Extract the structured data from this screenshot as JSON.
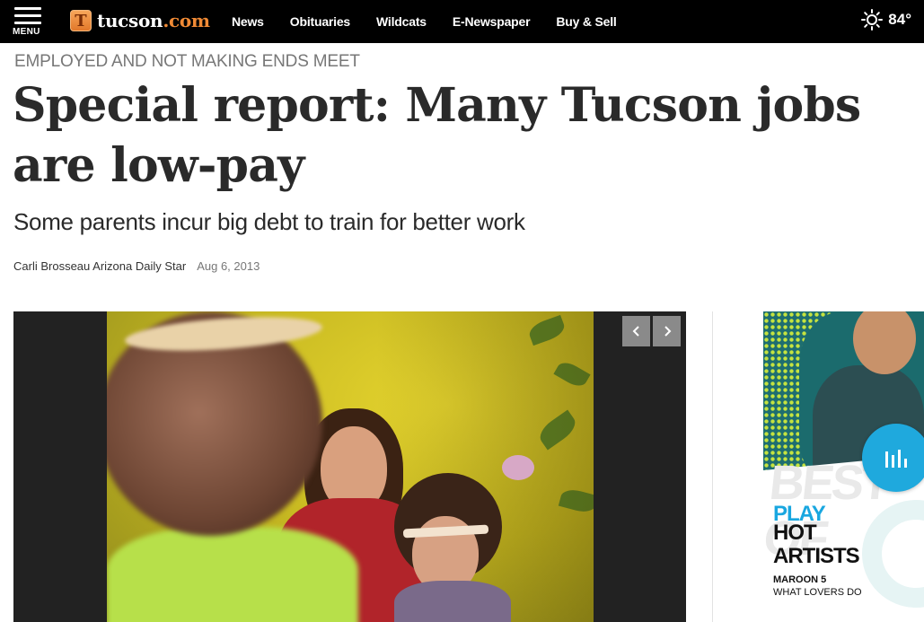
{
  "topbar": {
    "menu_label": "MENU",
    "logo": {
      "mark": "T",
      "name": "tucson",
      "tld": ".com"
    },
    "nav": [
      "News",
      "Obituaries",
      "Wildcats",
      "E-Newspaper",
      "Buy & Sell"
    ],
    "weather": {
      "icon": "sun-icon",
      "temp": "84°"
    }
  },
  "article": {
    "kicker": "EMPLOYED AND NOT MAKING ENDS MEET",
    "headline": "Special report: Many Tucson jobs are low-pay",
    "subhead": "Some parents incur big debt to train for better work",
    "byline": {
      "author": "Carli Brosseau Arizona Daily Star",
      "date": "Aug 6, 2013"
    }
  },
  "gallery": {
    "prev_icon": "chevron-left-icon",
    "next_icon": "chevron-right-icon"
  },
  "ad": {
    "headline_bg": "BEST OF",
    "play": "PLAY",
    "hot": "HOT",
    "artists": "ARTISTS",
    "artist": "MAROON 5",
    "song": "WHAT LOVERS DO"
  },
  "audio_widget": {
    "icon": "audio-bars-icon"
  },
  "colors": {
    "topbar": "#000000",
    "logo_accent": "#f08a35",
    "audio_button": "#1fa9dd",
    "ad_play": "#19a7e0"
  }
}
